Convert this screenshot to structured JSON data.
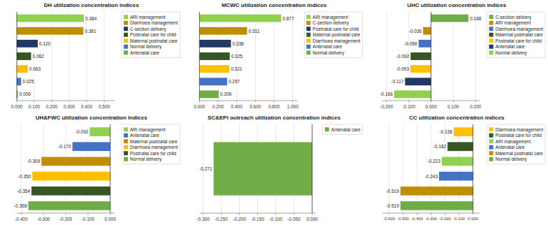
{
  "chart_data": [
    {
      "type": "bar",
      "orientation": "horizontal",
      "title": "DH  utilization concentration indices",
      "categories": [
        "ARI management",
        "Diarrhoea management",
        "C-section delivery",
        "Postnatal care for child",
        "Maternal postnatal care",
        "Normal delivery",
        "Antenatal care"
      ],
      "values": [
        0.384,
        0.381,
        0.12,
        0.082,
        0.063,
        0.025,
        0.006
      ],
      "value_labels": [
        "0.384",
        "0.381",
        "0.120",
        "0.082",
        "0.063",
        "0.025",
        "0.006"
      ],
      "colors": [
        "#92d050",
        "#bf8f00",
        "#1f3864",
        "#375623",
        "#ffc000",
        "#4472c4",
        "#70ad47"
      ],
      "xlim": [
        0.0,
        0.56
      ],
      "xticks": [
        {
          "value": 0.0,
          "label": "0.000"
        },
        {
          "value": 0.1,
          "label": "0.100"
        },
        {
          "value": 0.2,
          "label": "0.200"
        },
        {
          "value": 0.3,
          "label": "0.300"
        },
        {
          "value": 0.4,
          "label": "0.400"
        },
        {
          "value": 0.5,
          "label": "0.500"
        }
      ],
      "grid": true,
      "legend": "upper right",
      "data_labels": true,
      "tick_labels": "x"
    },
    {
      "type": "bar",
      "orientation": "horizontal",
      "title": "MCWC utilization concentration indices",
      "categories": [
        "ARI management",
        "C-section delivery",
        "Postnatal care for child",
        "Maternal postnatal care",
        "Diarrhoea management",
        "Antenatal care",
        "Normal delivery"
      ],
      "values": [
        0.877,
        0.511,
        0.338,
        0.325,
        0.321,
        0.297,
        0.206
      ],
      "value_labels": [
        "0.877",
        "0.511",
        "0.338",
        "0.325",
        "0.321",
        "0.297",
        "0.206"
      ],
      "colors": [
        "#92d050",
        "#bf8f00",
        "#1f3864",
        "#375623",
        "#ffc000",
        "#4472c4",
        "#70ad47"
      ],
      "xlim": [
        0.0,
        1.05
      ],
      "xticks": [
        {
          "value": 0.0,
          "label": "0.000"
        },
        {
          "value": 0.2,
          "label": "0.200"
        },
        {
          "value": 0.4,
          "label": "0.400"
        },
        {
          "value": 0.6,
          "label": "0.600"
        },
        {
          "value": 0.8,
          "label": "0.800"
        },
        {
          "value": 1.0,
          "label": "1.000"
        }
      ],
      "grid": true,
      "legend": "upper right",
      "data_labels": true,
      "tick_labels": "x"
    },
    {
      "type": "bar",
      "orientation": "horizontal",
      "title": "UHC utilization concentration indices",
      "categories": [
        "C-section delivery",
        "ARI management",
        "Diarrhoea management",
        "Maternal postnatal care",
        "Postnatal care for child",
        "Antenatal care",
        "Normal delivery"
      ],
      "values": [
        0.168,
        -0.036,
        -0.056,
        -0.092,
        -0.093,
        -0.117,
        -0.166
      ],
      "value_labels": [
        "0.168",
        "-0.036",
        "-0.056",
        "-0.092",
        "-0.093",
        "-0.117",
        "-0.166"
      ],
      "colors": [
        "#70ad47",
        "#bf8f00",
        "#4472c4",
        "#375623",
        "#ffc000",
        "#1f3864",
        "#92d050"
      ],
      "xlim": [
        -0.22,
        0.22
      ],
      "xticks": [
        {
          "value": -0.2,
          "label": "-0.200"
        },
        {
          "value": -0.1,
          "label": "-0.100"
        },
        {
          "value": 0.0,
          "label": "0.000"
        },
        {
          "value": 0.1,
          "label": "0.100"
        },
        {
          "value": 0.2,
          "label": "0.200"
        }
      ],
      "grid": true,
      "legend": "upper right",
      "data_labels": true,
      "tick_labels": "x"
    },
    {
      "type": "bar",
      "orientation": "horizontal",
      "title": "UH&FWC utilization concentration indices",
      "categories": [
        "ARI management",
        "Antenatal care",
        "Maternal postnatal care",
        "Diarrhoea management",
        "Postnatal care for child",
        "Normal delivery"
      ],
      "values": [
        -0.092,
        -0.17,
        -0.309,
        -0.35,
        -0.354,
        -0.368
      ],
      "value_labels": [
        "-0.092",
        "-0.170",
        "-0.309",
        "-0.350",
        "-0.354",
        "-0.368"
      ],
      "colors": [
        "#92d050",
        "#4472c4",
        "#bf8f00",
        "#ffc000",
        "#375623",
        "#70ad47"
      ],
      "xlim": [
        -0.42,
        0.02
      ],
      "xticks": [
        {
          "value": -0.4,
          "label": "-0.400"
        },
        {
          "value": -0.3,
          "label": "-0.300"
        },
        {
          "value": -0.2,
          "label": "-0.200"
        },
        {
          "value": -0.1,
          "label": "-0.100"
        },
        {
          "value": 0.0,
          "label": "0.000"
        }
      ],
      "grid": true,
      "legend": "upper right",
      "data_labels": true,
      "tick_labels": "x"
    },
    {
      "type": "bar",
      "orientation": "horizontal",
      "title": "SC&EPI outreach utilization concentration indices",
      "categories": [
        "Antenatal care"
      ],
      "values": [
        -0.271
      ],
      "value_labels": [
        "-0.271"
      ],
      "colors": [
        "#70ad47"
      ],
      "xlim": [
        -0.31,
        0.01
      ],
      "xticks": [
        {
          "value": -0.3,
          "label": "-0.300"
        },
        {
          "value": -0.25,
          "label": "-0.250"
        },
        {
          "value": -0.2,
          "label": "-0.200"
        },
        {
          "value": -0.15,
          "label": "-0.150"
        },
        {
          "value": -0.1,
          "label": "-0.100"
        },
        {
          "value": -0.05,
          "label": "-0.050"
        },
        {
          "value": 0.0,
          "label": "0.000"
        }
      ],
      "grid": true,
      "legend": "upper right",
      "data_labels": true,
      "tick_labels": "x"
    },
    {
      "type": "bar",
      "orientation": "horizontal",
      "title": "CC utilization concentration indices",
      "categories": [
        "Diarrhoea management",
        "Postnatal care for child",
        "ARI management",
        "Antenatal care",
        "Maternal postnatal care",
        "Normal delivery"
      ],
      "values": [
        -0.138,
        -0.182,
        -0.223,
        -0.243,
        -0.519,
        -0.519
      ],
      "value_labels": [
        "-0.138",
        "-0.182",
        "-0.223",
        "-0.243",
        "-0.519",
        "-0.519"
      ],
      "colors": [
        "#ffc000",
        "#375623",
        "#92d050",
        "#4472c4",
        "#bf8f00",
        "#70ad47"
      ],
      "xlim": [
        -0.65,
        0.05
      ],
      "xticks": [
        {
          "value": -0.6,
          "label": "-0.600"
        },
        {
          "value": -0.5,
          "label": "-0.500"
        },
        {
          "value": -0.4,
          "label": "-0.400"
        },
        {
          "value": -0.3,
          "label": "-0.300"
        },
        {
          "value": -0.2,
          "label": "-0.200"
        },
        {
          "value": -0.1,
          "label": "-0.100"
        },
        {
          "value": 0.0,
          "label": "0.000"
        }
      ],
      "grid": true,
      "legend": "upper right",
      "data_labels": true,
      "tick_labels": "x"
    }
  ]
}
